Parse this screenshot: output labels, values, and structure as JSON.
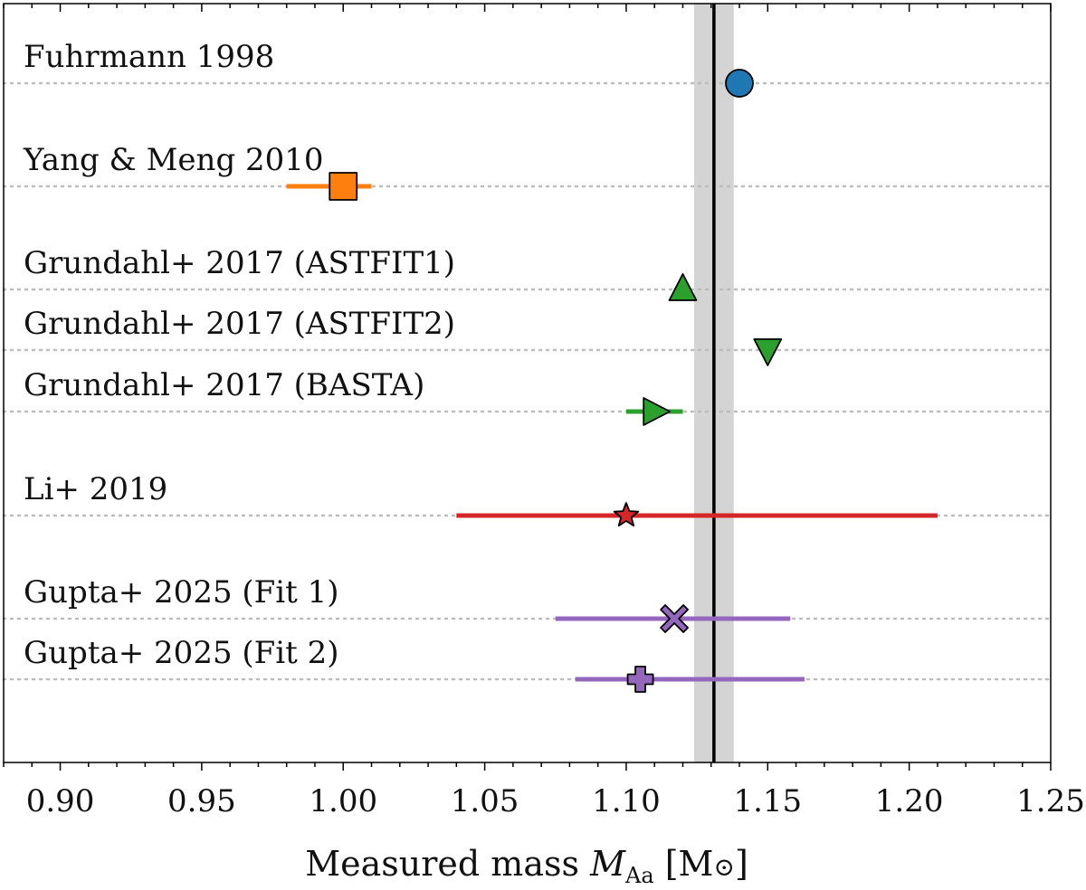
{
  "chart_data": {
    "type": "scatter",
    "xlabel": {
      "prefix": "Measured mass ",
      "symbol": "M",
      "subscript": "Aa",
      "unit_open": " [M",
      "unit_symbol": "⊙",
      "unit_close": "]"
    },
    "xlim": [
      0.88,
      1.25
    ],
    "xticks": [
      "0.90",
      "0.95",
      "1.00",
      "1.05",
      "1.10",
      "1.15",
      "1.20",
      "1.25"
    ],
    "reference": {
      "value": 1.131,
      "band": [
        1.124,
        1.138
      ],
      "color": "#000000",
      "band_color": "#d4d4d4"
    },
    "grid": "dotted horizontal guide per entry",
    "legend": "none",
    "entries": [
      {
        "label": "Fuhrmann 1998",
        "value": 1.14,
        "error": null,
        "marker": "circle",
        "color": "#1f77b4"
      },
      {
        "label": "Yang & Meng 2010",
        "value": 1.0,
        "error": [
          0.98,
          1.01
        ],
        "marker": "square",
        "color": "#ff7f0e"
      },
      {
        "label": "Grundahl+ 2017 (ASTFIT1)",
        "value": 1.12,
        "error": null,
        "marker": "triangle-up",
        "color": "#2ca02c"
      },
      {
        "label": "Grundahl+ 2017 (ASTFIT2)",
        "value": 1.15,
        "error": null,
        "marker": "triangle-down",
        "color": "#2ca02c"
      },
      {
        "label": "Grundahl+ 2017 (BASTA)",
        "value": 1.11,
        "error": [
          1.1,
          1.12
        ],
        "marker": "triangle-right",
        "color": "#2ca02c"
      },
      {
        "label": "Li+ 2019",
        "value": 1.1,
        "error": [
          1.04,
          1.21
        ],
        "marker": "star",
        "color": "#d62728"
      },
      {
        "label": "Gupta+ 2025 (Fit 1)",
        "value": 1.117,
        "error": [
          1.075,
          1.158
        ],
        "marker": "x",
        "color": "#9467bd"
      },
      {
        "label": "Gupta+ 2025 (Fit 2)",
        "value": 1.105,
        "error": [
          1.082,
          1.163
        ],
        "marker": "plus",
        "color": "#9467bd"
      }
    ]
  }
}
